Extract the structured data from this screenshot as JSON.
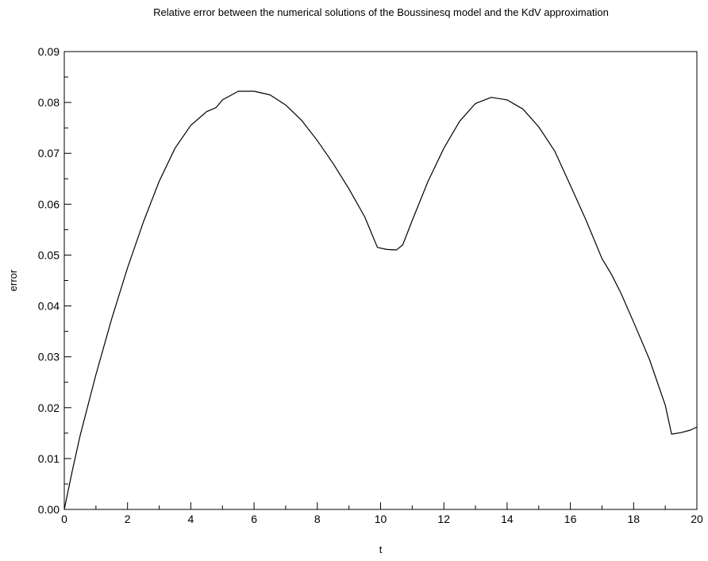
{
  "chart_data": {
    "type": "line",
    "title": "Relative error between the numerical solutions of the Boussinesq model and the KdV approximation",
    "xlabel": "t",
    "ylabel": "error",
    "xlim": [
      0,
      20
    ],
    "ylim": [
      0,
      0.09
    ],
    "x_ticks": [
      "0",
      "2",
      "4",
      "6",
      "8",
      "10",
      "12",
      "14",
      "16",
      "18",
      "20"
    ],
    "y_ticks": [
      "0.00",
      "0.01",
      "0.02",
      "0.03",
      "0.04",
      "0.05",
      "0.06",
      "0.07",
      "0.08",
      "0.09"
    ],
    "grid": false,
    "series": [
      {
        "color": "#000000",
        "x": [
          0,
          0.25,
          0.5,
          1,
          1.5,
          2,
          2.5,
          3,
          3.5,
          4,
          4.5,
          4.8,
          5,
          5.5,
          6,
          6.5,
          7,
          7.5,
          8,
          8.5,
          9,
          9.5,
          9.9,
          10.2,
          10.5,
          10.7,
          11,
          11.5,
          12,
          12.5,
          13,
          13.5,
          14,
          14.5,
          15,
          15.5,
          16,
          16.5,
          17,
          17.3,
          17.6,
          18,
          18.5,
          19,
          19.2,
          19.5,
          19.8,
          20
        ],
        "y": [
          0,
          0.0075,
          0.0145,
          0.0265,
          0.0375,
          0.0475,
          0.0565,
          0.0645,
          0.071,
          0.0755,
          0.0782,
          0.079,
          0.0805,
          0.0822,
          0.0822,
          0.0815,
          0.0795,
          0.0765,
          0.0725,
          0.068,
          0.063,
          0.0575,
          0.0515,
          0.0511,
          0.051,
          0.052,
          0.0568,
          0.0645,
          0.071,
          0.0763,
          0.0798,
          0.081,
          0.0805,
          0.0787,
          0.0752,
          0.0705,
          0.0637,
          0.0568,
          0.0493,
          0.0462,
          0.0425,
          0.0368,
          0.0295,
          0.0205,
          0.0148,
          0.0151,
          0.0156,
          0.0162
        ]
      }
    ]
  }
}
